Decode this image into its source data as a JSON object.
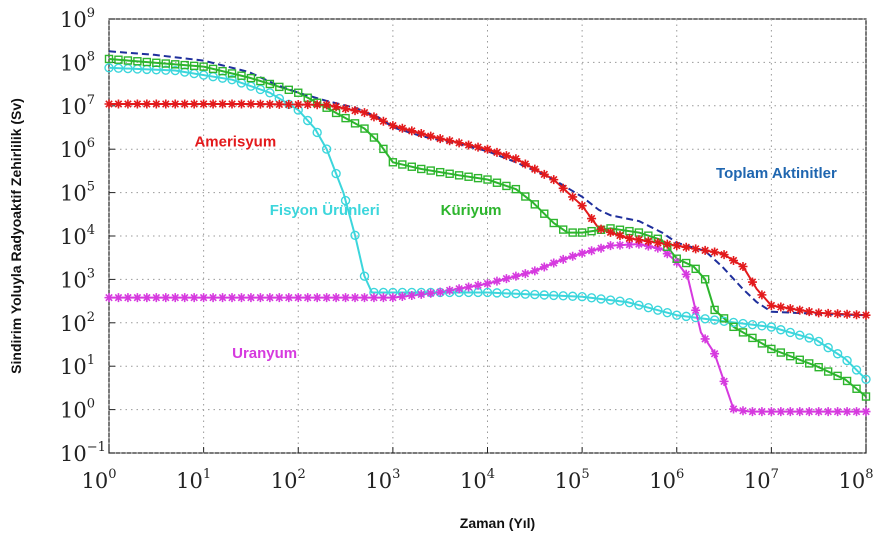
{
  "chart_data": {
    "type": "line",
    "xlabel": "Zaman (Yıl)",
    "ylabel": "Sindirim Yoluyla Radyoaktif Zehirlilik (Sv)",
    "x_scale": "log",
    "y_scale": "log",
    "xlim": [
      1,
      100000000
    ],
    "ylim": [
      0.1,
      1000000000
    ],
    "grid": true,
    "x_ticks": [
      {
        "base": "10",
        "exp": "0"
      },
      {
        "base": "10",
        "exp": "1"
      },
      {
        "base": "10",
        "exp": "2"
      },
      {
        "base": "10",
        "exp": "3"
      },
      {
        "base": "10",
        "exp": "4"
      },
      {
        "base": "10",
        "exp": "5"
      },
      {
        "base": "10",
        "exp": "6"
      },
      {
        "base": "10",
        "exp": "7"
      },
      {
        "base": "10",
        "exp": "8"
      }
    ],
    "y_ticks": [
      {
        "base": "10",
        "exp": "−1"
      },
      {
        "base": "10",
        "exp": "0"
      },
      {
        "base": "10",
        "exp": "1"
      },
      {
        "base": "10",
        "exp": "2"
      },
      {
        "base": "10",
        "exp": "3"
      },
      {
        "base": "10",
        "exp": "4"
      },
      {
        "base": "10",
        "exp": "5"
      },
      {
        "base": "10",
        "exp": "6"
      },
      {
        "base": "10",
        "exp": "7"
      },
      {
        "base": "10",
        "exp": "8"
      },
      {
        "base": "10",
        "exp": "9"
      }
    ],
    "series": [
      {
        "name": "Toplam Aktinitler",
        "color": "#1f2f9c",
        "style": "dashed",
        "marker": "none",
        "points": [
          [
            1,
            180000000
          ],
          [
            3,
            150000000
          ],
          [
            10,
            110000000
          ],
          [
            30,
            60000000
          ],
          [
            60,
            30000000
          ],
          [
            100,
            20000000
          ],
          [
            200,
            13000000
          ],
          [
            400,
            9000000
          ],
          [
            700,
            5500000
          ],
          [
            1000,
            3200000
          ],
          [
            2000,
            2000000
          ],
          [
            5000,
            1300000
          ],
          [
            10000,
            900000
          ],
          [
            20000,
            500000
          ],
          [
            50000,
            200000
          ],
          [
            100000,
            80000
          ],
          [
            150000,
            40000
          ],
          [
            200000,
            30000
          ],
          [
            400000,
            22000
          ],
          [
            700000,
            12000
          ],
          [
            1000000,
            7000
          ],
          [
            2000000,
            4500
          ],
          [
            3000000,
            2000
          ],
          [
            5000000,
            600
          ],
          [
            7000000,
            300
          ],
          [
            10000000,
            180
          ],
          [
            30000000,
            160
          ],
          [
            100000000,
            150
          ]
        ]
      },
      {
        "name": "Amerisyum",
        "color": "#e31a1c",
        "style": "solid",
        "marker": "star",
        "points": [
          [
            1,
            11000000
          ],
          [
            30,
            11000000
          ],
          [
            200,
            10500000
          ],
          [
            500,
            7000000
          ],
          [
            1000,
            3500000
          ],
          [
            3000,
            1800000
          ],
          [
            10000,
            1000000
          ],
          [
            20000,
            600000
          ],
          [
            50000,
            200000
          ],
          [
            100000,
            50000
          ],
          [
            150000,
            15000
          ],
          [
            300000,
            9000
          ],
          [
            1000000,
            6000
          ],
          [
            3000000,
            4000
          ],
          [
            5000000,
            2000
          ],
          [
            7000000,
            600
          ],
          [
            10000000,
            250
          ],
          [
            30000000,
            170
          ],
          [
            100000000,
            150
          ]
        ]
      },
      {
        "name": "Küriyum",
        "color": "#2db52d",
        "style": "solid",
        "marker": "square",
        "points": [
          [
            1,
            120000000
          ],
          [
            10,
            80000000
          ],
          [
            30,
            45000000
          ],
          [
            100,
            20000000
          ],
          [
            200,
            9000000
          ],
          [
            500,
            3000000
          ],
          [
            700,
            1500000
          ],
          [
            1000,
            500000
          ],
          [
            2000,
            350000
          ],
          [
            5000,
            250000
          ],
          [
            10000,
            200000
          ],
          [
            20000,
            120000
          ],
          [
            30000,
            60000
          ],
          [
            50000,
            20000
          ],
          [
            70000,
            12000
          ],
          [
            100000,
            12000
          ],
          [
            200000,
            15000
          ],
          [
            400000,
            12000
          ],
          [
            700000,
            8000
          ],
          [
            1000000,
            3000
          ],
          [
            1500000,
            2000
          ],
          [
            2000000,
            1000
          ],
          [
            2500000,
            200
          ],
          [
            4000000,
            80
          ],
          [
            10000000,
            25
          ],
          [
            30000000,
            10
          ],
          [
            60000000,
            5
          ],
          [
            100000000,
            2
          ]
        ]
      },
      {
        "name": "Fisyon Ürünleri",
        "color": "#3cd6dc",
        "style": "solid",
        "marker": "circle",
        "points": [
          [
            1,
            75000000
          ],
          [
            5,
            65000000
          ],
          [
            20,
            40000000
          ],
          [
            50,
            20000000
          ],
          [
            100,
            8000000
          ],
          [
            150,
            3000000
          ],
          [
            200,
            1000000
          ],
          [
            300,
            100000
          ],
          [
            400,
            10000
          ],
          [
            500,
            1200
          ],
          [
            600,
            500
          ],
          [
            1000,
            500
          ],
          [
            10000,
            500
          ],
          [
            100000,
            400
          ],
          [
            300000,
            300
          ],
          [
            1000000,
            150
          ],
          [
            3000000,
            110
          ],
          [
            10000000,
            80
          ],
          [
            30000000,
            40
          ],
          [
            60000000,
            15
          ],
          [
            100000000,
            5
          ]
        ]
      },
      {
        "name": "Uranyum",
        "color": "#d63adf",
        "style": "solid",
        "marker": "star",
        "points": [
          [
            1,
            380
          ],
          [
            100,
            380
          ],
          [
            1000,
            380
          ],
          [
            3000,
            500
          ],
          [
            10000,
            800
          ],
          [
            30000,
            1500
          ],
          [
            60000,
            2800
          ],
          [
            100000,
            4000
          ],
          [
            200000,
            6000
          ],
          [
            400000,
            6500
          ],
          [
            700000,
            5000
          ],
          [
            1000000,
            2500
          ],
          [
            1300000,
            1200
          ],
          [
            1800000,
            60
          ],
          [
            2500000,
            20
          ],
          [
            4000000,
            1
          ],
          [
            6000000,
            0.9
          ],
          [
            10000000,
            0.9
          ],
          [
            100000000,
            0.9
          ]
        ]
      }
    ],
    "annotations": [
      {
        "text": "Amerisyum",
        "x": 8,
        "y": 1500000,
        "color": "#e31a1c"
      },
      {
        "text": "Fisyon Ürünleri",
        "x": 50,
        "y": 40000,
        "color": "#3cd6dc"
      },
      {
        "text": "Küriyum",
        "x": 3200,
        "y": 40000,
        "color": "#2db52d"
      },
      {
        "text": "Toplam Aktinitler",
        "x": 2600000,
        "y": 280000,
        "color": "#1f66b0"
      },
      {
        "text": "Uranyum",
        "x": 20,
        "y": 20,
        "color": "#d63adf"
      }
    ]
  }
}
